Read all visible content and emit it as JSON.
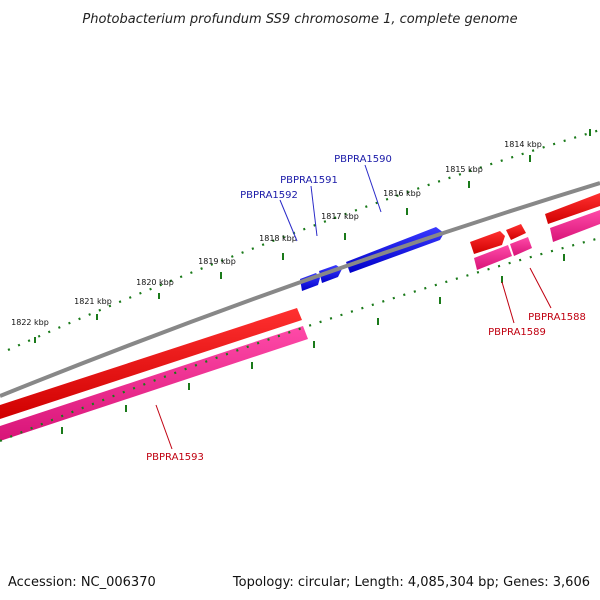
{
  "title": "Photobacterium profundum SS9 chromosome 1, complete genome",
  "footer": {
    "accession": "Accession: NC_006370",
    "stats": "Topology: circular; Length: 4,085,304 bp; Genes: 3,606"
  },
  "kbp_labels": [
    "1814 kbp",
    "1815 kbp",
    "1816 kbp",
    "1817 kbp",
    "1818 kbp",
    "1819 kbp",
    "1820 kbp",
    "1821 kbp",
    "1822 kbp"
  ],
  "genes_forward": [
    "PBPRA1590",
    "PBPRA1591",
    "PBPRA1592"
  ],
  "genes_reverse": [
    "PBPRA1588",
    "PBPRA1589",
    "PBPRA1593"
  ],
  "colors": {
    "backbone": "#888888",
    "forward_cds": "#0000ee",
    "reverse_cds": "#ee0000",
    "reverse_gene": "#ee1a8c",
    "ticks": "#1a7a1a"
  }
}
